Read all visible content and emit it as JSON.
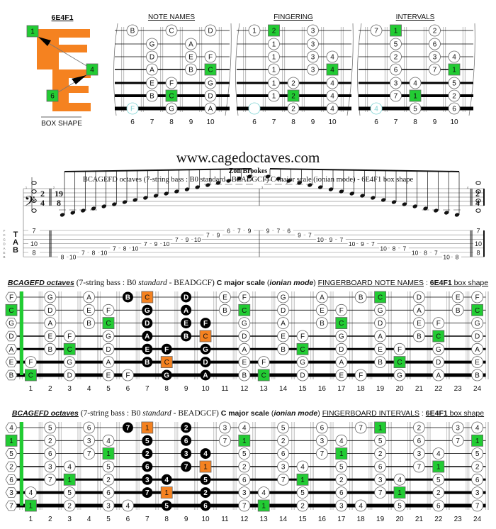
{
  "box": {
    "title": "6E4F1",
    "caption": "BOX SHAPE",
    "markers": [
      "1",
      "4",
      "6"
    ]
  },
  "colors": {
    "root": "#22cc33",
    "box_root": "#f58220",
    "shape": "#f58220",
    "ghost": "#7fd3d3",
    "dot": "#000000"
  },
  "string_names": [
    "F",
    "C",
    "G",
    "D",
    "A",
    "E",
    "B"
  ],
  "small_fret_numbers": [
    "6",
    "7",
    "8",
    "9",
    "10"
  ],
  "small_diagrams": [
    {
      "title": "NOTE NAMES",
      "rows": [
        "B.C.D",
        ".G.A.",
        ".D.EF",
        ".A.BC",
        ".EF.G",
        ".BC.D",
        "F.G.A"
      ]
    },
    {
      "title": "FINGERING",
      "rows": [
        "12.3.",
        ".1.3.",
        ".1.34",
        ".1.34",
        ".12.4",
        ".12.4",
        "..2.4"
      ]
    },
    {
      "title": "INTERVALS",
      "rows": [
        "71.2.",
        ".5.6.",
        ".2.34",
        ".6.71",
        ".34.5",
        ".71.2",
        "4.5.6"
      ]
    }
  ],
  "small_roots": [
    [
      0,
      7
    ],
    [
      3,
      10
    ],
    [
      5,
      8
    ]
  ],
  "ghost": {
    "string": 6,
    "fret": 6
  },
  "box_frets": [
    [
      6,
      7,
      9
    ],
    [
      7,
      9
    ],
    [
      7,
      9,
      10
    ],
    [
      7,
      9,
      10
    ],
    [
      7,
      8,
      10
    ],
    [
      7,
      8,
      10
    ],
    [
      8,
      10
    ]
  ],
  "header": {
    "site": "www.cagedoctaves.com",
    "author": "Zon Brookes",
    "subtitle": "BCAGEFD octaves (7-string bass : B0 standard - BEADGCF) C major scale (ionian mode) - 6E4F1 box shape"
  },
  "tab": {
    "clef": "𝄢",
    "time_start": [
      "2",
      "4"
    ],
    "time_mid": [
      "19",
      "8"
    ],
    "time_end": [
      "2",
      "4"
    ],
    "tab_letters": [
      "T",
      "A",
      "B"
    ],
    "measure_numbers": [
      "1",
      "2",
      "3",
      "4"
    ],
    "chord": [
      [
        0,
        "7"
      ],
      [
        3,
        "10"
      ],
      [
        5,
        "8"
      ]
    ],
    "ascending": [
      [
        6,
        "8"
      ],
      [
        6,
        "10"
      ],
      [
        5,
        "7"
      ],
      [
        5,
        "8"
      ],
      [
        5,
        "10"
      ],
      [
        4,
        "7"
      ],
      [
        4,
        "8"
      ],
      [
        4,
        "10"
      ],
      [
        3,
        "7"
      ],
      [
        3,
        "9"
      ],
      [
        3,
        "10"
      ],
      [
        2,
        "7"
      ],
      [
        2,
        "9"
      ],
      [
        2,
        "10"
      ],
      [
        1,
        "7"
      ],
      [
        1,
        "9"
      ],
      [
        0,
        "6"
      ],
      [
        0,
        "7"
      ],
      [
        0,
        "9"
      ]
    ],
    "descending": [
      [
        0,
        "9"
      ],
      [
        0,
        "7"
      ],
      [
        0,
        "6"
      ],
      [
        1,
        "9"
      ],
      [
        1,
        "7"
      ],
      [
        2,
        "10"
      ],
      [
        2,
        "9"
      ],
      [
        2,
        "7"
      ],
      [
        3,
        "10"
      ],
      [
        3,
        "9"
      ],
      [
        3,
        "7"
      ],
      [
        4,
        "10"
      ],
      [
        4,
        "8"
      ],
      [
        4,
        "7"
      ],
      [
        5,
        "10"
      ],
      [
        5,
        "8"
      ],
      [
        5,
        "7"
      ],
      [
        6,
        "10"
      ],
      [
        6,
        "8"
      ]
    ]
  },
  "boards": [
    {
      "title": {
        "a": "BCAGEFD octaves",
        "b": " (7-string bass : B0 ",
        "c": "standard",
        "d": " - BEADGCF) ",
        "e": "C major scale",
        "f": " (",
        "g": "ionian mode",
        "h": ") ",
        "i": "FINGERBOARD NOTE NAMES",
        "j": " : ",
        "k": "6E4F1",
        "l": " box shape"
      },
      "root_char": "C",
      "rows": [
        "F.G.A.BC.D.EF.G.A.BC.D.EF",
        "C.D.EF.G.A.BC.D.EF.G.A.BC",
        "G.A.BC.D.EF.G.A.BC.D.EF.G",
        "D.EF.G.A.BC.D.EF.G.A.BC.D",
        "A.BC.D.EF.G.A.BC.D.EF.G.A",
        "EF.G.A.BC.D.EF.G.A.BC.D.E",
        "BC.D.EF.G.A.BC.D.EF.G.A.B"
      ]
    },
    {
      "title": {
        "a": "BCAGEFD octaves",
        "b": " (7-string bass : B0 ",
        "c": "standard",
        "d": " - BEADGCF) ",
        "e": "C major scale",
        "f": " (",
        "g": "ionian mode",
        "h": ") ",
        "i": "FINGERBOARD INTERVALS",
        "j": " : ",
        "k": "6E4F1",
        "l": " box shape"
      },
      "root_char": "1",
      "rows": [
        "4.5.6.71.2.34.5.6.71.2.34",
        "1.2.34.5.6.71.2.34.5.6.71",
        "5.6.71.2.34.5.6.71.2.34.5",
        "2.34.5.6.71.2.34.5.6.71.2",
        "6.71.2.34.5.6.71.2.34.5.6",
        "34.5.6.71.2.34.5.6.71.2.3",
        "71.2.34.5.6.71.2.34.5.6.7"
      ]
    }
  ],
  "fret_numbers": [
    "1",
    "2",
    "3",
    "4",
    "5",
    "6",
    "7",
    "8",
    "9",
    "10",
    "11",
    "12",
    "13",
    "14",
    "15",
    "16",
    "17",
    "18",
    "19",
    "20",
    "21",
    "22",
    "23",
    "24"
  ]
}
